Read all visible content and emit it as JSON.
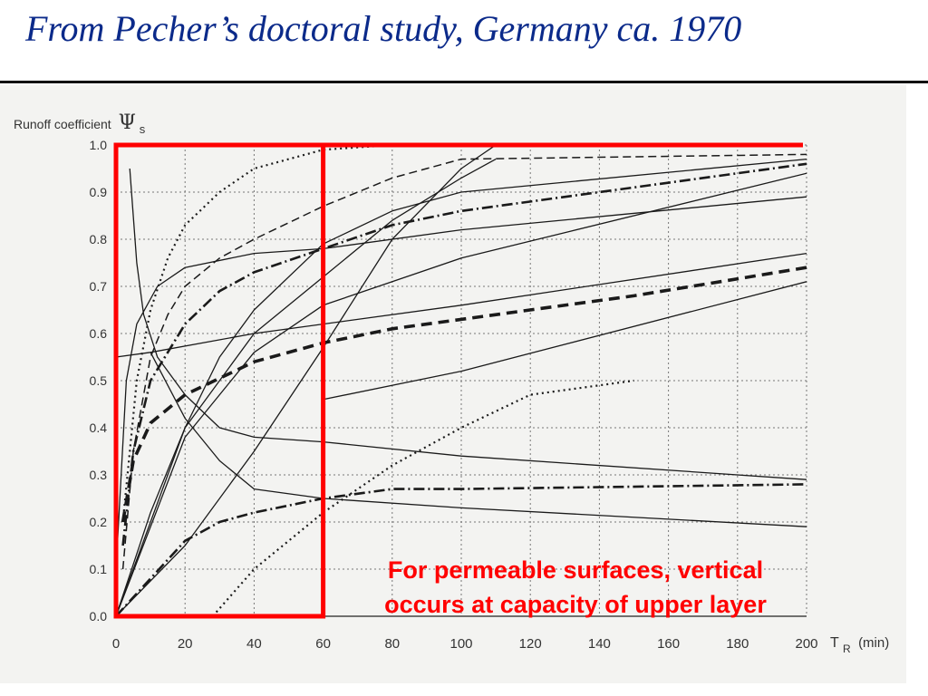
{
  "slide": {
    "title": "From Pecher’s doctoral study, Germany ca. 1970",
    "annotation_line1": "For permeable surfaces, vertical",
    "annotation_line2": "occurs at capacity of upper layer",
    "accent_color": "#ff0000",
    "title_color": "#0b2a8a"
  },
  "chart_data": {
    "type": "line",
    "ylabel": "Runoff coefficient",
    "ylabel_symbol": "Ψ",
    "ylabel_subscript": "s",
    "xlabel": "T",
    "xlabel_subscript": "R",
    "xlabel_unit": "(min)",
    "xlim": [
      0,
      200
    ],
    "ylim": [
      0,
      1.0
    ],
    "x_ticks": [
      0,
      20,
      40,
      60,
      80,
      100,
      120,
      140,
      160,
      180,
      200
    ],
    "y_ticks": [
      "0.0",
      "0.1",
      "0.2",
      "0.3",
      "0.4",
      "0.5",
      "0.6",
      "0.7",
      "0.8",
      "0.9",
      "1.0"
    ],
    "grid": true,
    "highlight_box": {
      "x": [
        0,
        60
      ],
      "y": [
        0,
        1.0
      ]
    },
    "series": [
      {
        "style": "solid",
        "points": [
          [
            4,
            0.95
          ],
          [
            6,
            0.75
          ],
          [
            8,
            0.64
          ],
          [
            12,
            0.55
          ],
          [
            20,
            0.47
          ],
          [
            30,
            0.4
          ],
          [
            40,
            0.38
          ],
          [
            60,
            0.37
          ],
          [
            100,
            0.34
          ],
          [
            200,
            0.29
          ]
        ]
      },
      {
        "style": "solid",
        "points": [
          [
            0,
            0.55
          ],
          [
            10,
            0.56
          ],
          [
            40,
            0.6
          ],
          [
            100,
            0.66
          ],
          [
            200,
            0.77
          ]
        ]
      },
      {
        "style": "solid",
        "points": [
          [
            0,
            0.1
          ],
          [
            3,
            0.5
          ],
          [
            6,
            0.62
          ],
          [
            12,
            0.7
          ],
          [
            20,
            0.74
          ],
          [
            40,
            0.77
          ],
          [
            60,
            0.78
          ],
          [
            100,
            0.82
          ],
          [
            200,
            0.89
          ]
        ]
      },
      {
        "style": "solid",
        "points": [
          [
            0,
            0.0
          ],
          [
            10,
            0.2
          ],
          [
            20,
            0.4
          ],
          [
            40,
            0.6
          ],
          [
            60,
            0.72
          ],
          [
            70,
            0.78
          ],
          [
            80,
            0.84
          ],
          [
            100,
            0.93
          ],
          [
            110,
            0.97
          ]
        ]
      },
      {
        "style": "solid",
        "points": [
          [
            0,
            0.0
          ],
          [
            20,
            0.15
          ],
          [
            40,
            0.35
          ],
          [
            60,
            0.57
          ],
          [
            80,
            0.8
          ],
          [
            100,
            0.95
          ],
          [
            110,
            1.0
          ]
        ]
      },
      {
        "style": "solid",
        "points": [
          [
            0,
            0.0
          ],
          [
            10,
            0.22
          ],
          [
            20,
            0.4
          ],
          [
            30,
            0.55
          ],
          [
            40,
            0.65
          ],
          [
            60,
            0.79
          ],
          [
            80,
            0.86
          ],
          [
            100,
            0.9
          ],
          [
            200,
            0.97
          ]
        ]
      },
      {
        "style": "solid",
        "points": [
          [
            0,
            0.0
          ],
          [
            20,
            0.38
          ],
          [
            40,
            0.56
          ],
          [
            60,
            0.66
          ],
          [
            100,
            0.76
          ],
          [
            200,
            0.94
          ]
        ]
      },
      {
        "style": "solid",
        "points": [
          [
            10,
            0.56
          ],
          [
            20,
            0.42
          ],
          [
            30,
            0.33
          ],
          [
            40,
            0.27
          ],
          [
            60,
            0.25
          ],
          [
            100,
            0.23
          ],
          [
            200,
            0.19
          ]
        ]
      },
      {
        "style": "solid",
        "points": [
          [
            60,
            0.46
          ],
          [
            100,
            0.52
          ],
          [
            200,
            0.71
          ]
        ]
      },
      {
        "style": "dashed",
        "points": [
          [
            2,
            0.1
          ],
          [
            5,
            0.35
          ],
          [
            10,
            0.55
          ],
          [
            15,
            0.64
          ],
          [
            20,
            0.7
          ],
          [
            30,
            0.76
          ],
          [
            40,
            0.8
          ],
          [
            60,
            0.87
          ],
          [
            80,
            0.93
          ],
          [
            100,
            0.97
          ],
          [
            200,
            0.98
          ]
        ]
      },
      {
        "style": "dotted",
        "points": [
          [
            2,
            0.2
          ],
          [
            6,
            0.5
          ],
          [
            10,
            0.65
          ],
          [
            15,
            0.76
          ],
          [
            20,
            0.83
          ],
          [
            30,
            0.9
          ],
          [
            40,
            0.95
          ],
          [
            60,
            0.99
          ],
          [
            80,
            1.0
          ]
        ]
      },
      {
        "style": "dash-dot",
        "points": [
          [
            2,
            0.15
          ],
          [
            5,
            0.35
          ],
          [
            10,
            0.5
          ],
          [
            20,
            0.62
          ],
          [
            30,
            0.69
          ],
          [
            40,
            0.73
          ],
          [
            60,
            0.78
          ],
          [
            80,
            0.83
          ],
          [
            100,
            0.86
          ],
          [
            150,
            0.91
          ],
          [
            200,
            0.96
          ]
        ]
      },
      {
        "style": "dash-dot",
        "points": [
          [
            0,
            0.0
          ],
          [
            10,
            0.08
          ],
          [
            20,
            0.16
          ],
          [
            30,
            0.2
          ],
          [
            40,
            0.22
          ],
          [
            60,
            0.25
          ],
          [
            80,
            0.27
          ],
          [
            100,
            0.27
          ],
          [
            200,
            0.28
          ]
        ]
      },
      {
        "style": "thick-dashed",
        "points": [
          [
            2,
            0.2
          ],
          [
            5,
            0.33
          ],
          [
            10,
            0.41
          ],
          [
            20,
            0.47
          ],
          [
            40,
            0.54
          ],
          [
            60,
            0.58
          ],
          [
            80,
            0.61
          ],
          [
            100,
            0.63
          ],
          [
            150,
            0.68
          ],
          [
            200,
            0.74
          ]
        ]
      },
      {
        "style": "dotted",
        "points": [
          [
            28,
            0.0
          ],
          [
            40,
            0.1
          ],
          [
            60,
            0.22
          ],
          [
            80,
            0.32
          ],
          [
            100,
            0.4
          ],
          [
            120,
            0.47
          ],
          [
            150,
            0.5
          ]
        ]
      }
    ]
  }
}
